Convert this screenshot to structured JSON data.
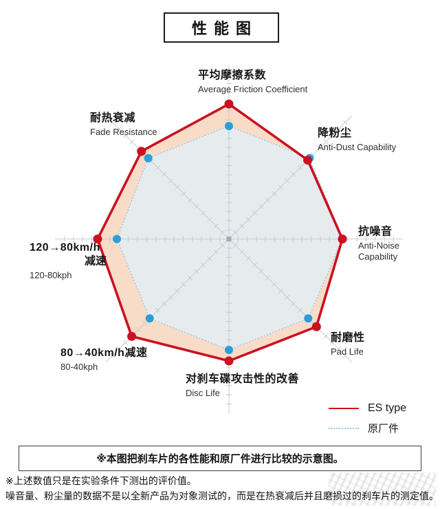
{
  "title": "性能图",
  "chart_data": {
    "type": "radar",
    "title": "性能图",
    "axis_range": [
      0,
      10
    ],
    "grid": "8 radial axes with minor tick marks, light gray",
    "legend_position": "bottom-right",
    "axes": [
      {
        "zh": "平均摩擦系数",
        "en": "Average Friction Coefficient"
      },
      {
        "zh": "降粉尘",
        "en": "Anti-Dust Capability"
      },
      {
        "zh": "抗噪音",
        "en": "Anti-Noise Capability"
      },
      {
        "zh": "耐磨性",
        "en": "Pad Life"
      },
      {
        "zh": "对刹车碟攻击性的改善",
        "en": "Disc Life"
      },
      {
        "zh": "80→40km/h减速",
        "en": "80-40kph"
      },
      {
        "zh": "120→80km/h",
        "zh2": "减速",
        "en": "120-80kph"
      },
      {
        "zh": "耐热衰减",
        "en": "Fade Resistance"
      }
    ],
    "series": [
      {
        "name": "ES type",
        "line_style": "solid",
        "line_color": "#cc1020",
        "dot_color": "#cc1020",
        "fill": "#f8dcc8",
        "values": [
          9.8,
          8.1,
          8.25,
          9.0,
          8.85,
          10.0,
          9.55,
          9.0
        ]
      },
      {
        "name": "原厂件",
        "line_style": "dotted",
        "line_color": "#92c9e6",
        "dot_color": "#2b9fd8",
        "fill": "#e6ebee",
        "values": [
          8.2,
          8.3,
          8.25,
          8.15,
          8.05,
          8.15,
          8.15,
          8.3
        ]
      }
    ],
    "axis_color": "#c7cdd2",
    "center_marker_color": "#a3a8ac"
  },
  "notes": {
    "boxed_note": "※本图把刹车片的各性能和原厂件进行比较的示意图。",
    "footnote1": "※上述数值只是在实验条件下测出的评价值。",
    "footnote2": "噪音量、粉尘量的数据不是以全新产品为对象测试的，而是在热衰减后并且磨损过的刹车片的测定值。"
  }
}
